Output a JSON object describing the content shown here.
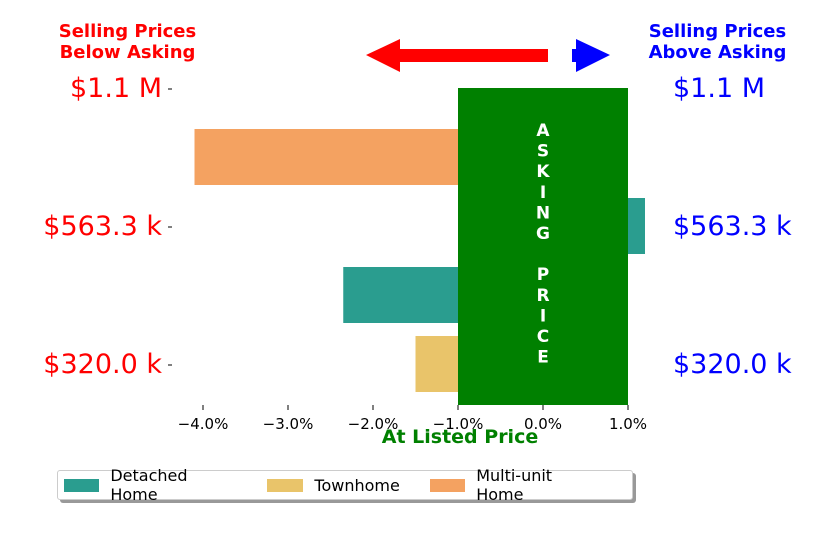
{
  "header": {
    "left_line1": "Selling Prices",
    "left_line2": "Below Asking",
    "right_line1": "Selling Prices",
    "right_line2": "Above Asking"
  },
  "colors": {
    "below": "#ff0000",
    "above": "#0000ff",
    "asking": "#008000",
    "detached": "#2a9d8f",
    "townhome": "#e9c46a",
    "multi": "#f4a261"
  },
  "chart_data": {
    "type": "bar",
    "orientation": "horizontal",
    "xlabel": "At Listed Price",
    "xlim": [
      -4.4,
      1.2
    ],
    "x_ticks": [
      -4.0,
      -3.0,
      -2.0,
      -1.0,
      0.0,
      1.0
    ],
    "x_tick_labels": [
      "−4.0%",
      "−3.0%",
      "−2.0%",
      "−1.0%",
      "0.0%",
      "1.0%"
    ],
    "price_levels": [
      "$1.1 M",
      "$563.3 k",
      "$320.0 k"
    ],
    "asking_band": {
      "label": "ASKING PRICE",
      "x_range": [
        -1.0,
        1.0
      ]
    },
    "series": [
      {
        "name": "Multi-unit Home",
        "price_level": "$1.1 M",
        "value": -4.1
      },
      {
        "name": "Detached Home",
        "price_level": "$563.3 k",
        "value": 1.2
      },
      {
        "name": "Detached Home",
        "price_level": "$320.0 k",
        "value": -2.35
      },
      {
        "name": "Townhome",
        "price_level": "$320.0 k",
        "value": -1.5
      }
    ],
    "legend": [
      "Detached Home",
      "Townhome",
      "Multi-unit Home"
    ],
    "legend_position": "bottom"
  }
}
